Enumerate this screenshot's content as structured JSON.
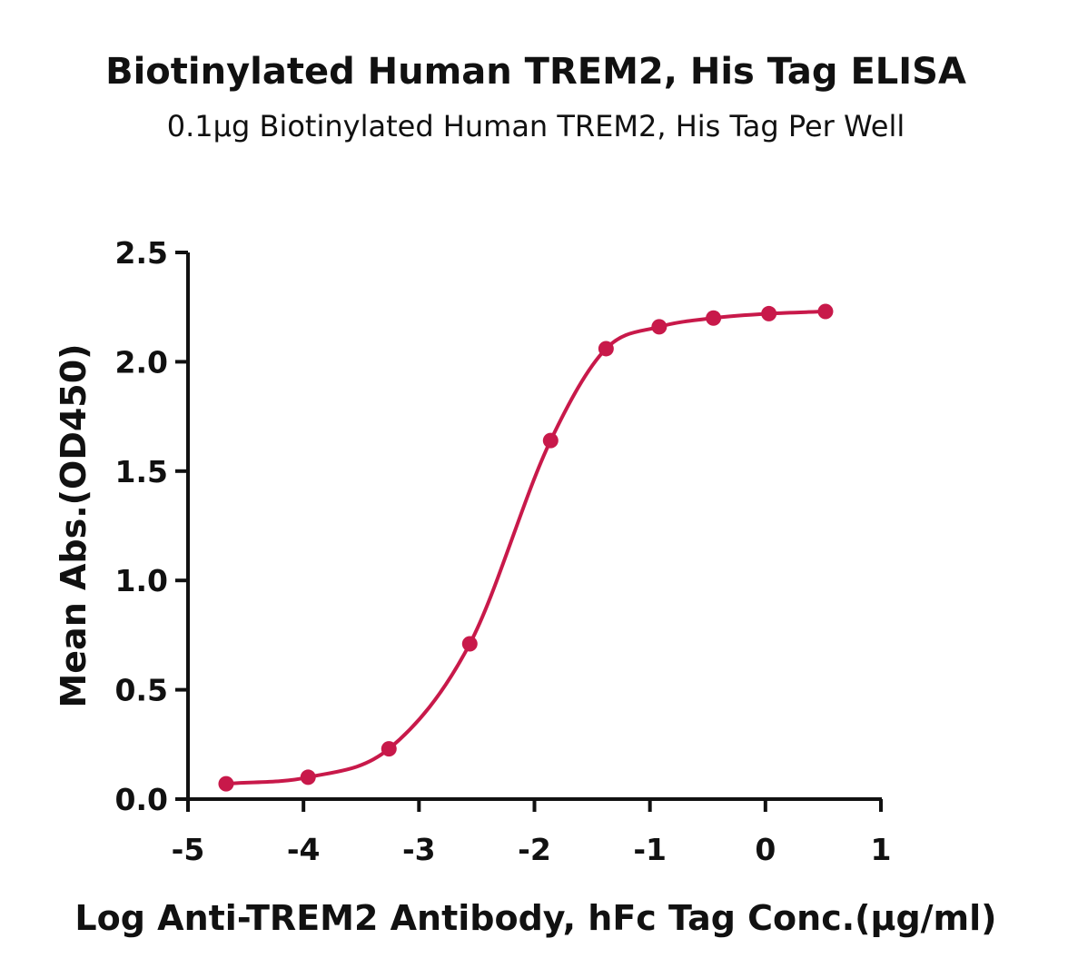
{
  "chart_data": {
    "type": "scatter",
    "title": "Biotinylated Human TREM2, His Tag ELISA",
    "subtitle": "0.1μg Biotinylated Human TREM2, His Tag Per Well",
    "xlabel": "Log Anti-TREM2 Antibody, hFc Tag Conc.(μg/ml)",
    "ylabel": "Mean Abs.(OD450)",
    "xlim": [
      -5,
      1
    ],
    "ylim": [
      0,
      2.5
    ],
    "x_ticks": [
      "-5",
      "-4",
      "-3",
      "-2",
      "-1",
      "0",
      "1"
    ],
    "y_ticks": [
      "0.0",
      "0.5",
      "1.0",
      "1.5",
      "2.0",
      "2.5"
    ],
    "grid": false,
    "color": "#c8194a",
    "series": [
      {
        "x": [
          -4.67,
          -3.96,
          -3.26,
          -2.56,
          -1.86,
          -1.38,
          -0.92,
          -0.45,
          0.03,
          0.52
        ],
        "y": [
          0.07,
          0.1,
          0.23,
          0.71,
          1.64,
          2.06,
          2.16,
          2.2,
          2.22,
          2.23
        ],
        "fit": "sigmoidal"
      }
    ]
  }
}
